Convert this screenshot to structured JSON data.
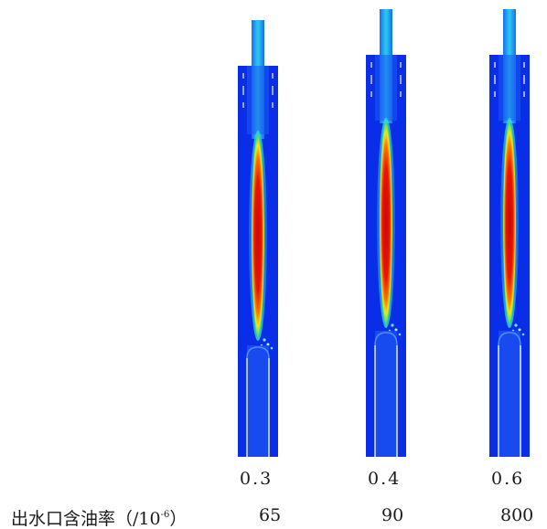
{
  "panels": [
    {
      "ratio": "0.3",
      "oil": "65"
    },
    {
      "ratio": "0.4",
      "oil": "90"
    },
    {
      "ratio": "0.6",
      "oil": "800"
    }
  ],
  "row_label": {
    "prefix": "出水口含油率（/10",
    "exponent": "-6",
    "suffix": "）"
  },
  "colors": {
    "background": "#0a2ee8",
    "core_red": "#e8140c",
    "core_orange": "#ff7a00",
    "core_yellow": "#f0e81a",
    "core_green": "#3cde6a",
    "cyan": "#1ec8e8",
    "light_blue": "#5aa0ff",
    "line_white": "#e8eefc"
  },
  "colormap": "jet"
}
